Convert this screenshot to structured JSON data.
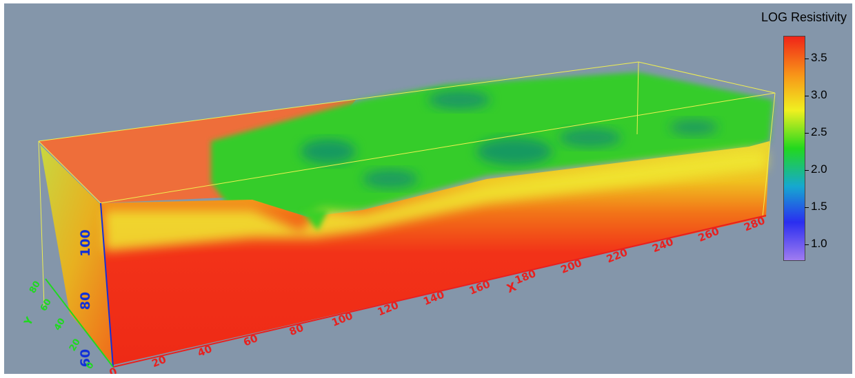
{
  "chart_data": {
    "type": "heatmap",
    "title": "",
    "xlabel": "X",
    "ylabel": "Y",
    "zlabel": "",
    "x_ticks": [
      0,
      20,
      40,
      60,
      80,
      100,
      120,
      140,
      160,
      180,
      200,
      220,
      240,
      260,
      280
    ],
    "y_ticks": [
      0,
      20,
      40,
      60,
      80
    ],
    "z_ticks": [
      60,
      80,
      100
    ],
    "colorbar": {
      "title": "LOG Resistivity",
      "ticks": [
        1.0,
        1.5,
        2.0,
        2.5,
        3.0,
        3.5
      ],
      "range": [
        0.8,
        3.8
      ],
      "colors": [
        "#a07cf0",
        "#2a2ef0",
        "#16a8d0",
        "#22d81e",
        "#f0f020",
        "#f89418",
        "#f02418"
      ]
    },
    "surface_profile_x": [
      0,
      20,
      40,
      60,
      80,
      100,
      120,
      140,
      160,
      180,
      200,
      220,
      240,
      260,
      280
    ],
    "surface_low_resistivity_top_log": [
      3.6,
      3.5,
      3.4,
      2.0,
      1.9,
      1.8,
      1.8,
      1.9,
      1.8,
      1.7,
      1.8,
      1.9,
      1.8,
      1.9,
      2.0
    ],
    "deep_zone_log": 3.7
  },
  "colors": {
    "background": "#8496aa",
    "bounding_box": "#f0f050",
    "x_axis": "#e8201e",
    "y_axis": "#20d820",
    "z_axis": "#1230d8"
  }
}
